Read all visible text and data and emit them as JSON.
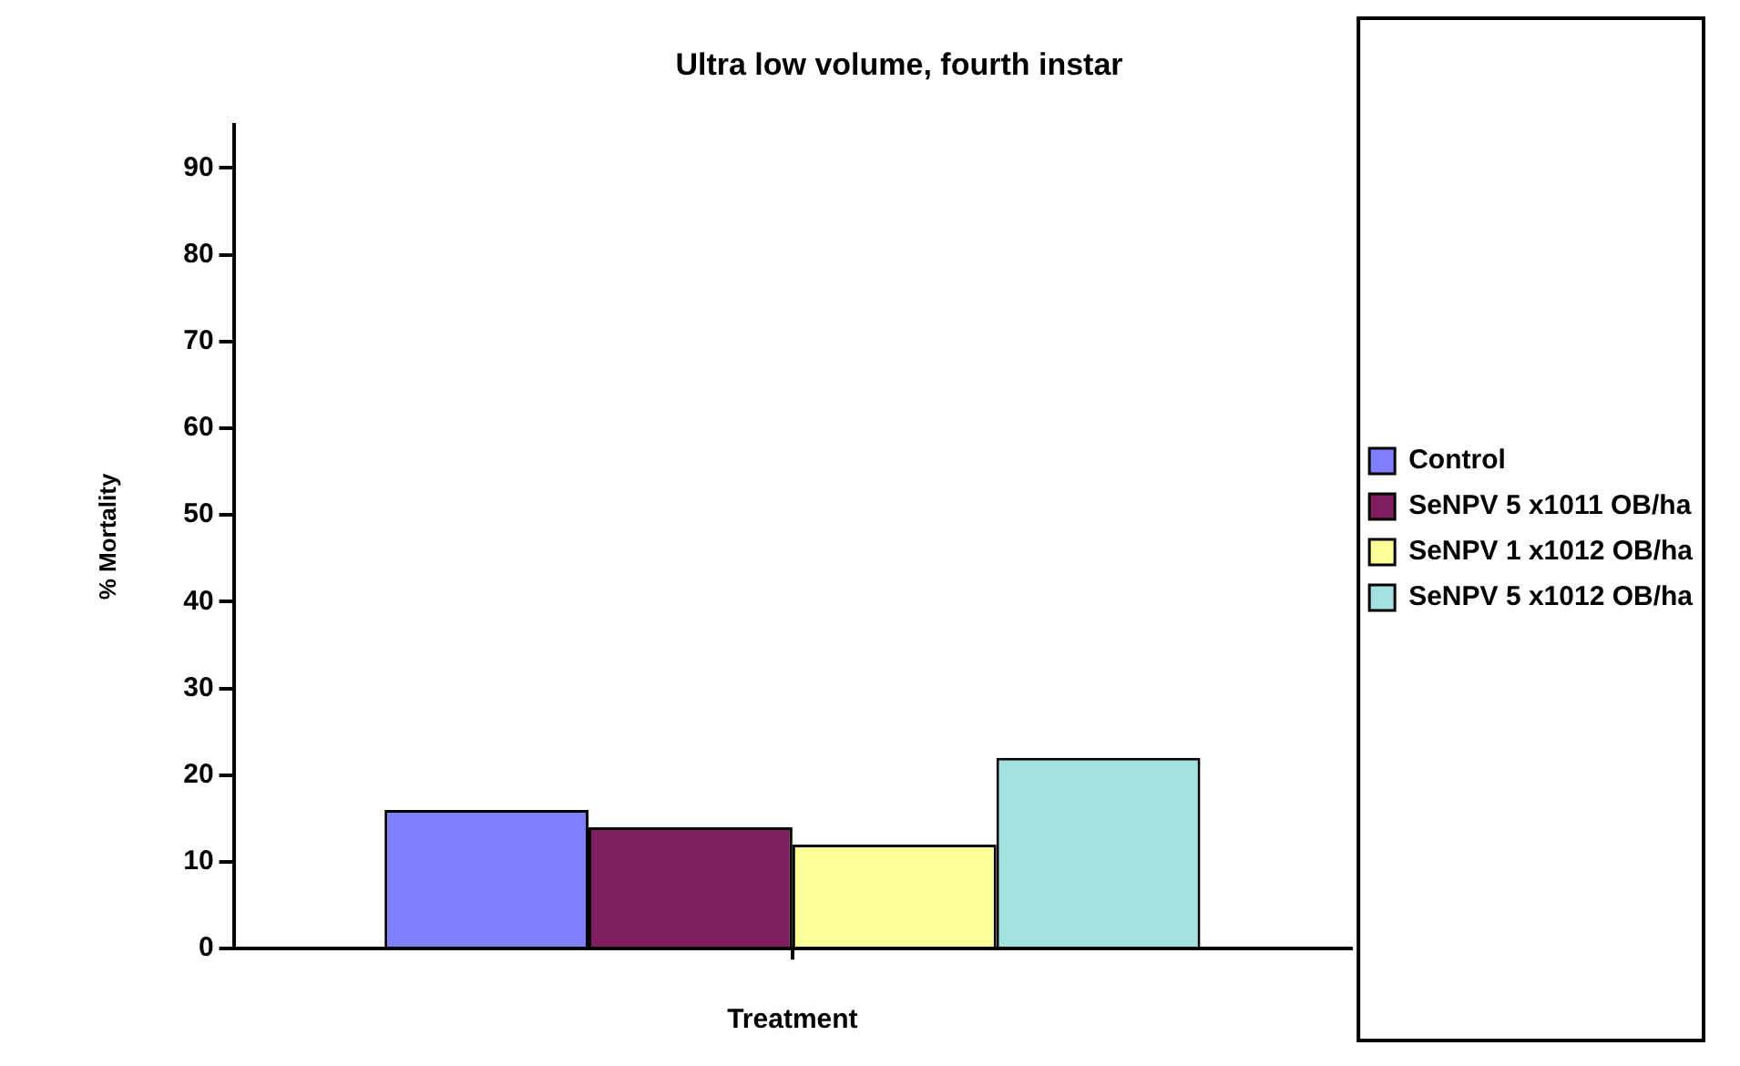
{
  "chart_data": {
    "type": "bar",
    "title": "Ultra low volume, fourth instar",
    "xlabel": "Treatment",
    "ylabel": "% Mortality",
    "categories": [
      null
    ],
    "series": [
      {
        "name": "Control",
        "color": "#8080ff",
        "values": [
          16
        ]
      },
      {
        "name": "SeNPV 5 x1011 OB/ha",
        "color": "#7f1f5f",
        "values": [
          14
        ]
      },
      {
        "name": "SeNPV 1 x1012 OB/ha",
        "color": "#ffff99",
        "values": [
          12
        ]
      },
      {
        "name": "SeNPV 5 x1012 OB/ha",
        "color": "#a3e0e0",
        "values": [
          22
        ]
      }
    ],
    "ylim": [
      0,
      95
    ],
    "yticks": [
      0,
      10,
      20,
      30,
      40,
      50,
      60,
      70,
      80,
      90
    ],
    "grid": false,
    "legend": "right"
  }
}
